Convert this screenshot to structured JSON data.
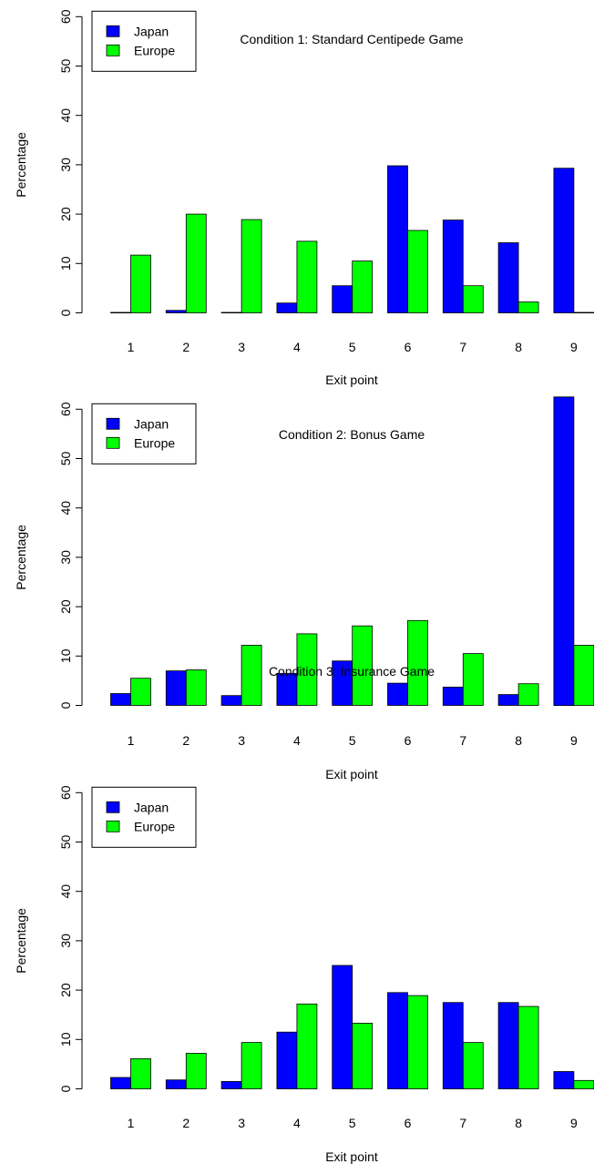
{
  "colors": {
    "japan": "#0000FF",
    "europe": "#00FF00",
    "axis": "#000000",
    "background": "#FFFFFF"
  },
  "chart_data": [
    {
      "type": "bar",
      "title": "Condition 1: Standard Centipede Game",
      "xlabel": "Exit point",
      "ylabel": "Percentage",
      "categories": [
        "1",
        "2",
        "3",
        "4",
        "5",
        "6",
        "7",
        "8",
        "9"
      ],
      "ylim": [
        0,
        60
      ],
      "yticks": [
        "0",
        "10",
        "20",
        "30",
        "40",
        "50",
        "60"
      ],
      "legend_position": "top-left",
      "grid": false,
      "series": [
        {
          "name": "Japan",
          "values": [
            0.1,
            0.5,
            0.1,
            2.0,
            5.5,
            29.8,
            18.8,
            14.2,
            29.3
          ]
        },
        {
          "name": "Europe",
          "values": [
            11.7,
            20.0,
            18.9,
            14.5,
            10.5,
            16.7,
            5.5,
            2.2,
            0.1
          ]
        }
      ]
    },
    {
      "type": "bar",
      "title": "Condition 2: Bonus Game",
      "xlabel": "Exit point",
      "ylabel": "Percentage",
      "categories": [
        "1",
        "2",
        "3",
        "4",
        "5",
        "6",
        "7",
        "8",
        "9"
      ],
      "ylim": [
        0,
        60
      ],
      "yticks": [
        "0",
        "10",
        "20",
        "30",
        "40",
        "50",
        "60"
      ],
      "legend_position": "top-left",
      "grid": false,
      "series": [
        {
          "name": "Japan",
          "values": [
            2.4,
            7.0,
            2.0,
            6.5,
            9.0,
            4.5,
            3.7,
            2.2,
            62.5
          ]
        },
        {
          "name": "Europe",
          "values": [
            5.5,
            7.2,
            12.2,
            14.5,
            16.1,
            17.2,
            10.5,
            4.4,
            12.2
          ]
        }
      ]
    },
    {
      "type": "bar",
      "title": "Condition 3: Insurance Game",
      "xlabel": "Exit point",
      "ylabel": "Percentage",
      "categories": [
        "1",
        "2",
        "3",
        "4",
        "5",
        "6",
        "7",
        "8",
        "9"
      ],
      "ylim": [
        0,
        60
      ],
      "yticks": [
        "0",
        "10",
        "20",
        "30",
        "40",
        "50",
        "60"
      ],
      "legend_position": "top-left",
      "grid": false,
      "series": [
        {
          "name": "Japan",
          "values": [
            2.3,
            1.8,
            1.5,
            11.5,
            25.0,
            19.5,
            17.5,
            17.5,
            3.5
          ]
        },
        {
          "name": "Europe",
          "values": [
            6.1,
            7.2,
            9.4,
            17.2,
            13.3,
            18.9,
            9.4,
            16.7,
            1.7
          ]
        }
      ]
    }
  ]
}
